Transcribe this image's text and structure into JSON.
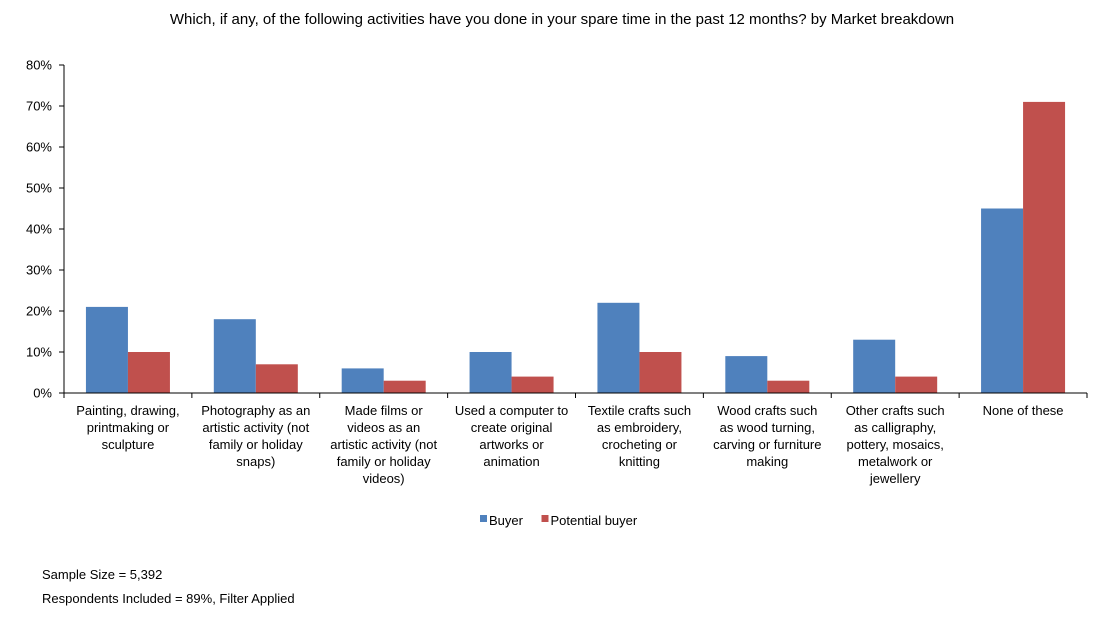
{
  "chart_data": {
    "type": "bar",
    "title": "Which, if any, of the following activities have you done in your spare time in the past 12 months? by Market breakdown",
    "xlabel": "",
    "ylabel": "",
    "ylim": [
      0,
      80
    ],
    "yticks": [
      "0%",
      "10%",
      "20%",
      "30%",
      "40%",
      "50%",
      "60%",
      "70%",
      "80%"
    ],
    "grid": false,
    "legend_position": "bottom",
    "categories": [
      [
        "Painting, drawing,",
        "printmaking or",
        "sculpture"
      ],
      [
        "Photography as an",
        "artistic activity (not",
        "family or holiday",
        "snaps)"
      ],
      [
        "Made films or",
        "videos as an",
        "artistic activity (not",
        "family or holiday",
        "videos)"
      ],
      [
        "Used a computer to",
        "create original",
        "artworks or",
        "animation"
      ],
      [
        "Textile crafts such",
        "as embroidery,",
        "crocheting or",
        "knitting"
      ],
      [
        "Wood crafts such",
        "as wood turning,",
        "carving or furniture",
        "making"
      ],
      [
        "Other crafts such",
        "as calligraphy,",
        "pottery, mosaics,",
        "metalwork or",
        "jewellery"
      ],
      [
        "None of these"
      ]
    ],
    "series": [
      {
        "name": "Buyer",
        "color": "#4f81bd",
        "values": [
          21,
          18,
          6,
          10,
          22,
          9,
          13,
          45
        ]
      },
      {
        "name": "Potential buyer",
        "color": "#c0504d",
        "values": [
          10,
          7,
          3,
          4,
          10,
          3,
          4,
          71
        ]
      }
    ]
  },
  "notes": {
    "sample_size": "Sample Size = 5,392",
    "respondents": "Respondents Included = 89%, Filter Applied"
  }
}
